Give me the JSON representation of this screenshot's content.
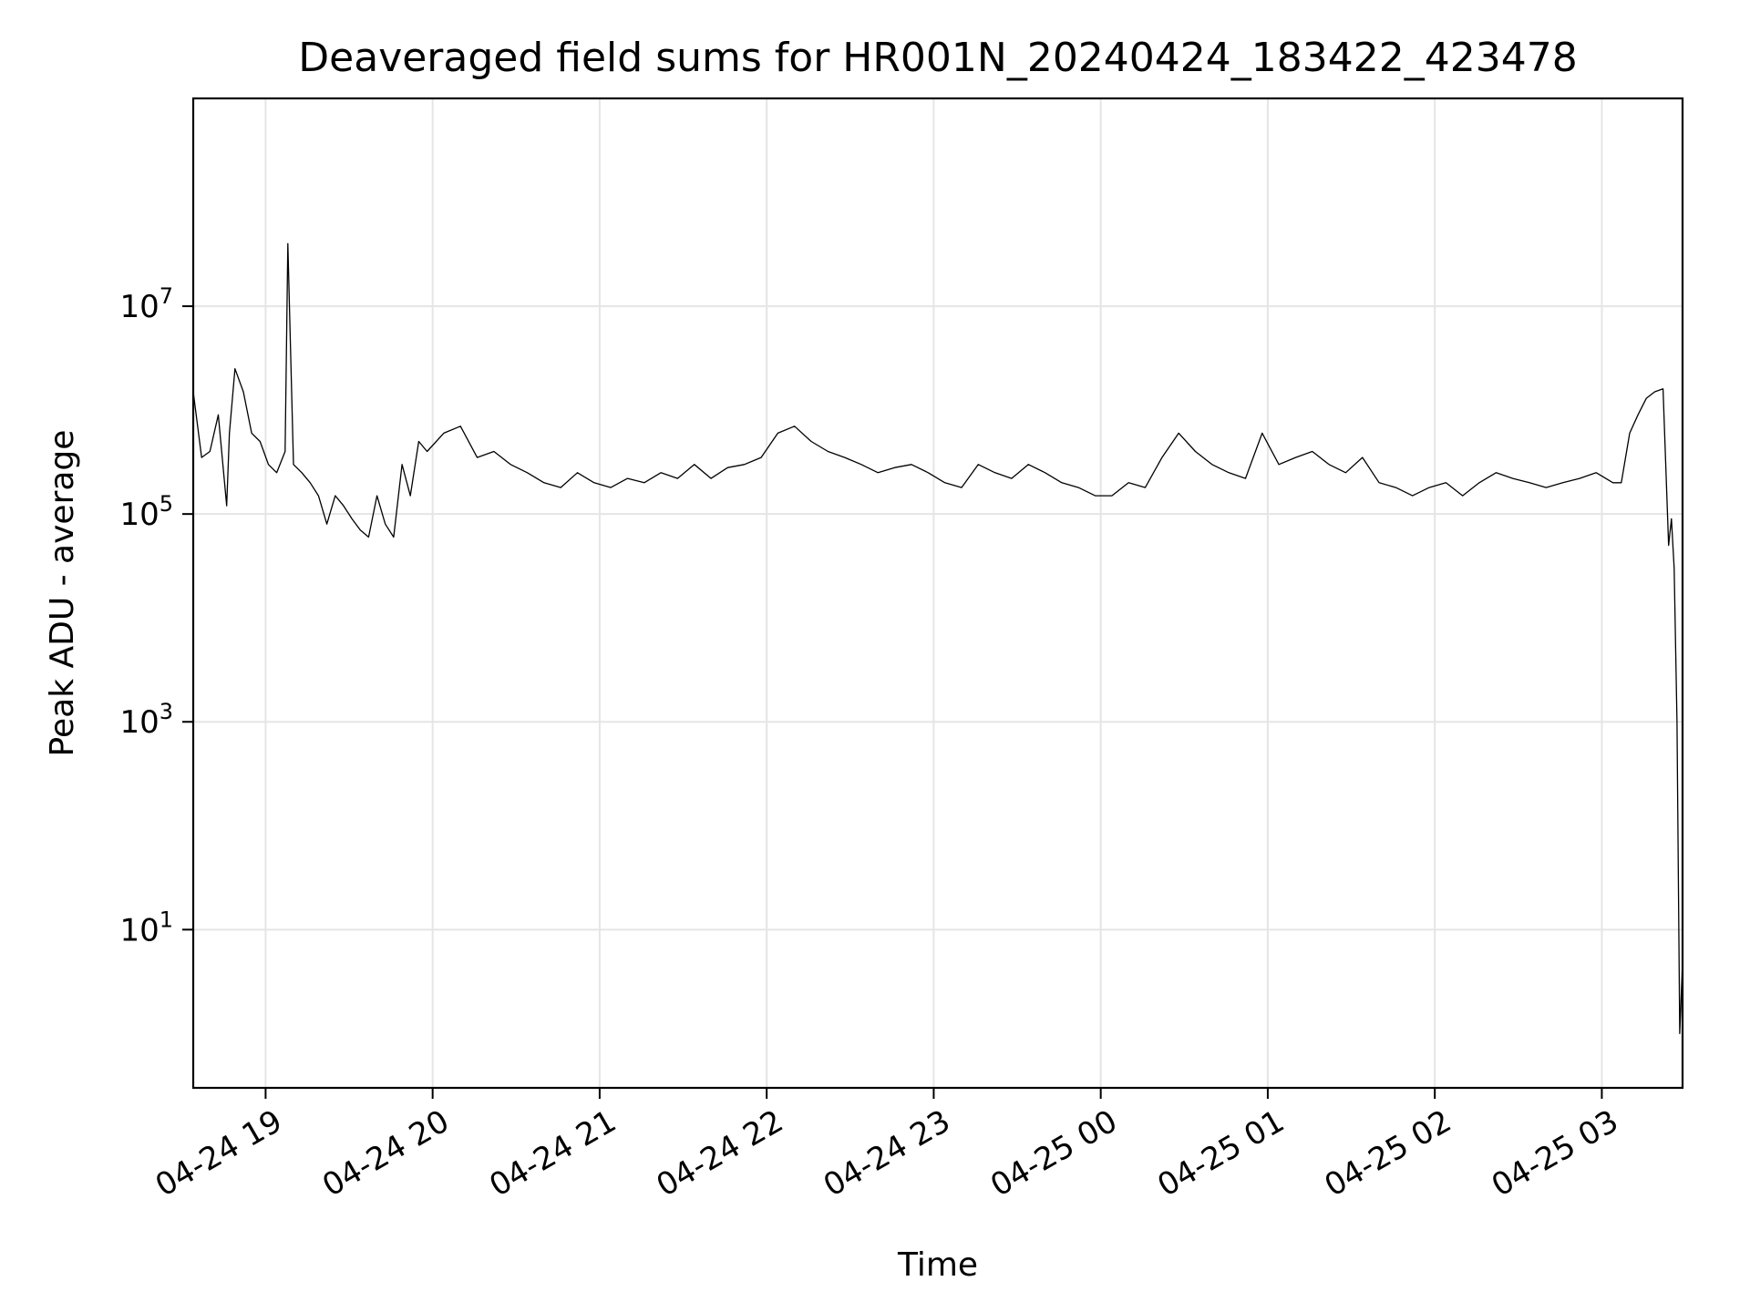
{
  "chart_data": {
    "type": "line",
    "title": "Deaveraged field sums for HR001N_20240424_183422_423478",
    "xlabel": "Time",
    "ylabel": "Peak ADU - average",
    "y_scale": "log",
    "ylim": [
      0.3,
      1000000000
    ],
    "xlim": [
      "2024-04-24 18:34",
      "2024-04-25 03:29"
    ],
    "grid": true,
    "legend": "none",
    "line_color": "#000000",
    "grid_color": "#e5e5e5",
    "x_ticks": [
      {
        "label": "04-24 19",
        "time": "2024-04-24 19:00"
      },
      {
        "label": "04-24 20",
        "time": "2024-04-24 20:00"
      },
      {
        "label": "04-24 21",
        "time": "2024-04-24 21:00"
      },
      {
        "label": "04-24 22",
        "time": "2024-04-24 22:00"
      },
      {
        "label": "04-24 23",
        "time": "2024-04-24 23:00"
      },
      {
        "label": "04-25 00",
        "time": "2024-04-25 00:00"
      },
      {
        "label": "04-25 01",
        "time": "2024-04-25 01:00"
      },
      {
        "label": "04-25 02",
        "time": "2024-04-25 02:00"
      },
      {
        "label": "04-25 03",
        "time": "2024-04-25 03:00"
      }
    ],
    "y_ticks": [
      {
        "base": "10",
        "exponent": "1",
        "value": 10
      },
      {
        "base": "10",
        "exponent": "3",
        "value": 1000
      },
      {
        "base": "10",
        "exponent": "5",
        "value": 100000
      },
      {
        "base": "10",
        "exponent": "7",
        "value": 10000000
      }
    ],
    "series": [
      {
        "x": [
          "2024-04-24 18:34",
          "2024-04-24 18:37",
          "2024-04-24 18:40",
          "2024-04-24 18:43",
          "2024-04-24 18:46",
          "2024-04-24 18:47",
          "2024-04-24 18:49",
          "2024-04-24 18:52",
          "2024-04-24 18:55",
          "2024-04-24 18:58",
          "2024-04-24 19:01",
          "2024-04-24 19:04",
          "2024-04-24 19:07",
          "2024-04-24 19:08",
          "2024-04-24 19:10",
          "2024-04-24 19:13",
          "2024-04-24 19:16",
          "2024-04-24 19:19",
          "2024-04-24 19:22",
          "2024-04-24 19:25",
          "2024-04-24 19:28",
          "2024-04-24 19:31",
          "2024-04-24 19:34",
          "2024-04-24 19:37",
          "2024-04-24 19:40",
          "2024-04-24 19:43",
          "2024-04-24 19:46",
          "2024-04-24 19:49",
          "2024-04-24 19:52",
          "2024-04-24 19:55",
          "2024-04-24 19:58",
          "2024-04-24 20:04",
          "2024-04-24 20:10",
          "2024-04-24 20:16",
          "2024-04-24 20:22",
          "2024-04-24 20:28",
          "2024-04-24 20:34",
          "2024-04-24 20:40",
          "2024-04-24 20:46",
          "2024-04-24 20:52",
          "2024-04-24 20:58",
          "2024-04-24 21:04",
          "2024-04-24 21:10",
          "2024-04-24 21:16",
          "2024-04-24 21:22",
          "2024-04-24 21:28",
          "2024-04-24 21:34",
          "2024-04-24 21:40",
          "2024-04-24 21:46",
          "2024-04-24 21:52",
          "2024-04-24 21:58",
          "2024-04-24 22:04",
          "2024-04-24 22:10",
          "2024-04-24 22:16",
          "2024-04-24 22:22",
          "2024-04-24 22:28",
          "2024-04-24 22:34",
          "2024-04-24 22:40",
          "2024-04-24 22:46",
          "2024-04-24 22:52",
          "2024-04-24 22:58",
          "2024-04-24 23:04",
          "2024-04-24 23:10",
          "2024-04-24 23:16",
          "2024-04-24 23:22",
          "2024-04-24 23:28",
          "2024-04-24 23:34",
          "2024-04-24 23:40",
          "2024-04-24 23:46",
          "2024-04-24 23:52",
          "2024-04-24 23:58",
          "2024-04-25 00:04",
          "2024-04-25 00:10",
          "2024-04-25 00:16",
          "2024-04-25 00:22",
          "2024-04-25 00:28",
          "2024-04-25 00:34",
          "2024-04-25 00:40",
          "2024-04-25 00:46",
          "2024-04-25 00:52",
          "2024-04-25 00:58",
          "2024-04-25 01:04",
          "2024-04-25 01:10",
          "2024-04-25 01:16",
          "2024-04-25 01:22",
          "2024-04-25 01:28",
          "2024-04-25 01:34",
          "2024-04-25 01:40",
          "2024-04-25 01:46",
          "2024-04-25 01:52",
          "2024-04-25 01:58",
          "2024-04-25 02:04",
          "2024-04-25 02:10",
          "2024-04-25 02:16",
          "2024-04-25 02:22",
          "2024-04-25 02:28",
          "2024-04-25 02:34",
          "2024-04-25 02:40",
          "2024-04-25 02:46",
          "2024-04-25 02:52",
          "2024-04-25 02:58",
          "2024-04-25 03:04",
          "2024-04-25 03:07",
          "2024-04-25 03:10",
          "2024-04-25 03:13",
          "2024-04-25 03:16",
          "2024-04-25 03:19",
          "2024-04-25 03:22",
          "2024-04-25 03:24",
          "2024-04-25 03:25",
          "2024-04-25 03:26",
          "2024-04-25 03:27",
          "2024-04-25 03:28",
          "2024-04-25 03:29"
        ],
        "y": [
          1500000,
          350000,
          400000,
          900000,
          120000,
          600000,
          2500000,
          1500000,
          600000,
          500000,
          300000,
          250000,
          400000,
          40000000,
          300000,
          250000,
          200000,
          150000,
          80000,
          150000,
          120000,
          90000,
          70000,
          60000,
          150000,
          80000,
          60000,
          300000,
          150000,
          500000,
          400000,
          600000,
          700000,
          350000,
          400000,
          300000,
          250000,
          200000,
          180000,
          250000,
          200000,
          180000,
          220000,
          200000,
          250000,
          220000,
          300000,
          220000,
          280000,
          300000,
          350000,
          600000,
          700000,
          500000,
          400000,
          350000,
          300000,
          250000,
          280000,
          300000,
          250000,
          200000,
          180000,
          300000,
          250000,
          220000,
          300000,
          250000,
          200000,
          180000,
          150000,
          150000,
          200000,
          180000,
          350000,
          600000,
          400000,
          300000,
          250000,
          220000,
          600000,
          300000,
          350000,
          400000,
          300000,
          250000,
          350000,
          200000,
          180000,
          150000,
          180000,
          200000,
          150000,
          200000,
          250000,
          220000,
          200000,
          180000,
          200000,
          220000,
          250000,
          200000,
          200000,
          600000,
          900000,
          1300000,
          1500000,
          1600000,
          50000,
          90000,
          30000,
          1000,
          1,
          5
        ]
      }
    ]
  }
}
